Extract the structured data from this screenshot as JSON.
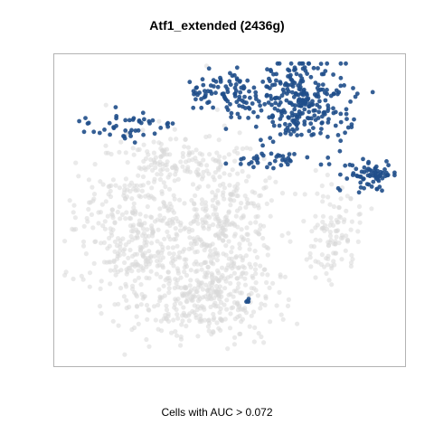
{
  "chart_data": {
    "type": "scatter",
    "title": "Atf1_extended (2436g)",
    "xlabel": "Cells with AUC > 0.072",
    "ylabel": "",
    "grid": false,
    "legend": "none",
    "colors": {
      "background_cells": "#d9d9d9",
      "highlighted_cells": "#1f4e8a",
      "frame": "#b3b3b3"
    },
    "series": [
      {
        "role": "background",
        "clusters": [
          {
            "cx": 0.24,
            "cy": 0.57,
            "sx": 0.09,
            "sy": 0.12,
            "n": 380
          },
          {
            "cx": 0.48,
            "cy": 0.52,
            "sx": 0.08,
            "sy": 0.12,
            "n": 320
          },
          {
            "cx": 0.43,
            "cy": 0.78,
            "sx": 0.1,
            "sy": 0.07,
            "n": 320
          },
          {
            "cx": 0.8,
            "cy": 0.57,
            "sx": 0.04,
            "sy": 0.07,
            "n": 110
          },
          {
            "cx": 0.33,
            "cy": 0.33,
            "sx": 0.07,
            "sy": 0.04,
            "n": 90
          }
        ]
      },
      {
        "role": "highlighted",
        "clusters": [
          {
            "cx": 0.7,
            "cy": 0.15,
            "sx": 0.07,
            "sy": 0.07,
            "n": 280
          },
          {
            "cx": 0.5,
            "cy": 0.12,
            "sx": 0.04,
            "sy": 0.04,
            "n": 70
          },
          {
            "cx": 0.9,
            "cy": 0.39,
            "sx": 0.035,
            "sy": 0.025,
            "n": 70
          },
          {
            "cx": 0.2,
            "cy": 0.23,
            "sx": 0.07,
            "sy": 0.025,
            "n": 45
          },
          {
            "cx": 0.62,
            "cy": 0.34,
            "sx": 0.05,
            "sy": 0.02,
            "n": 30
          },
          {
            "cx": 0.42,
            "cy": 0.14,
            "sx": 0.03,
            "sy": 0.03,
            "n": 20
          },
          {
            "cx": 0.55,
            "cy": 0.79,
            "sx": 0.005,
            "sy": 0.005,
            "n": 4
          }
        ]
      }
    ]
  }
}
